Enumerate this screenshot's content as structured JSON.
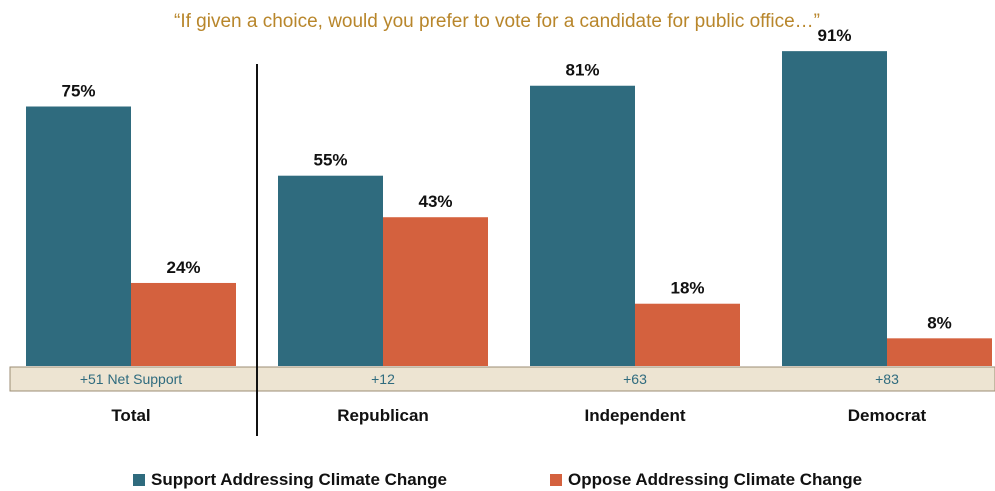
{
  "chart_data": {
    "type": "bar",
    "title": "“If given a choice, would you prefer to vote for a candidate for public office…”",
    "categories": [
      "Total",
      "Republican",
      "Independent",
      "Democrat"
    ],
    "series": [
      {
        "name": "Support Addressing Climate Change",
        "values": [
          75,
          55,
          81,
          91
        ],
        "labels": [
          "75%",
          "55%",
          "81%",
          "91%"
        ],
        "color": "#2F6B7E"
      },
      {
        "name": "Oppose Addressing Climate Change",
        "values": [
          24,
          43,
          18,
          8
        ],
        "labels": [
          "24%",
          "43%",
          "18%",
          "8%"
        ],
        "color": "#D4613E"
      }
    ],
    "net_labels": [
      "+51 Net Support",
      "+12",
      "+63",
      "+83"
    ],
    "ylim": [
      0,
      100
    ],
    "colors": {
      "net_band": "#EDE4D2",
      "net_text": "#2F6B7E",
      "title": "#B8862B"
    },
    "legend_position": "bottom",
    "grid": false
  }
}
